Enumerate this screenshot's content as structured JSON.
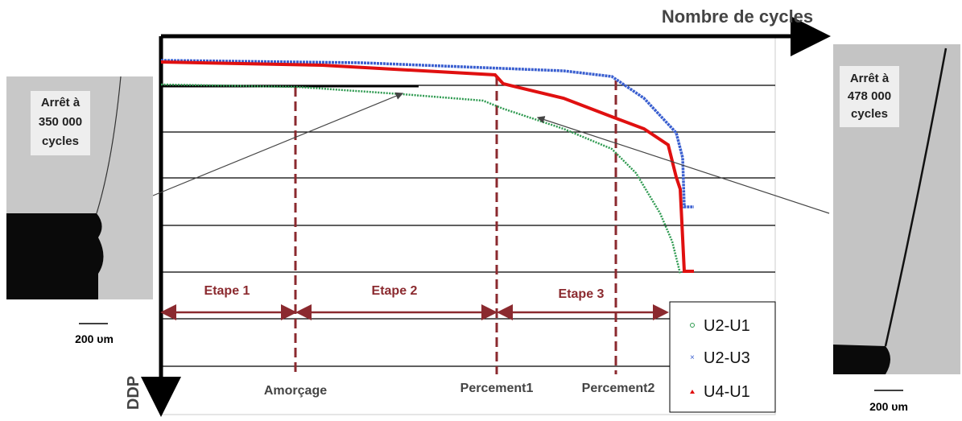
{
  "header": {
    "x_axis": "Nombre de cycles",
    "y_axis": "DDP"
  },
  "stages": [
    "Etape 1",
    "Etape 2",
    "Etape 3"
  ],
  "events": [
    "Amorçage",
    "Percement1",
    "Percement2"
  ],
  "legend": [
    "U2-U1",
    "U2-U3",
    "U4-U1"
  ],
  "left_image": {
    "caption": [
      "Arrêt à",
      "350 000",
      "cycles"
    ],
    "scale": "200 υm"
  },
  "right_image": {
    "caption": [
      "Arrêt à",
      "478 000",
      "cycles"
    ],
    "scale": "200 υm"
  }
}
